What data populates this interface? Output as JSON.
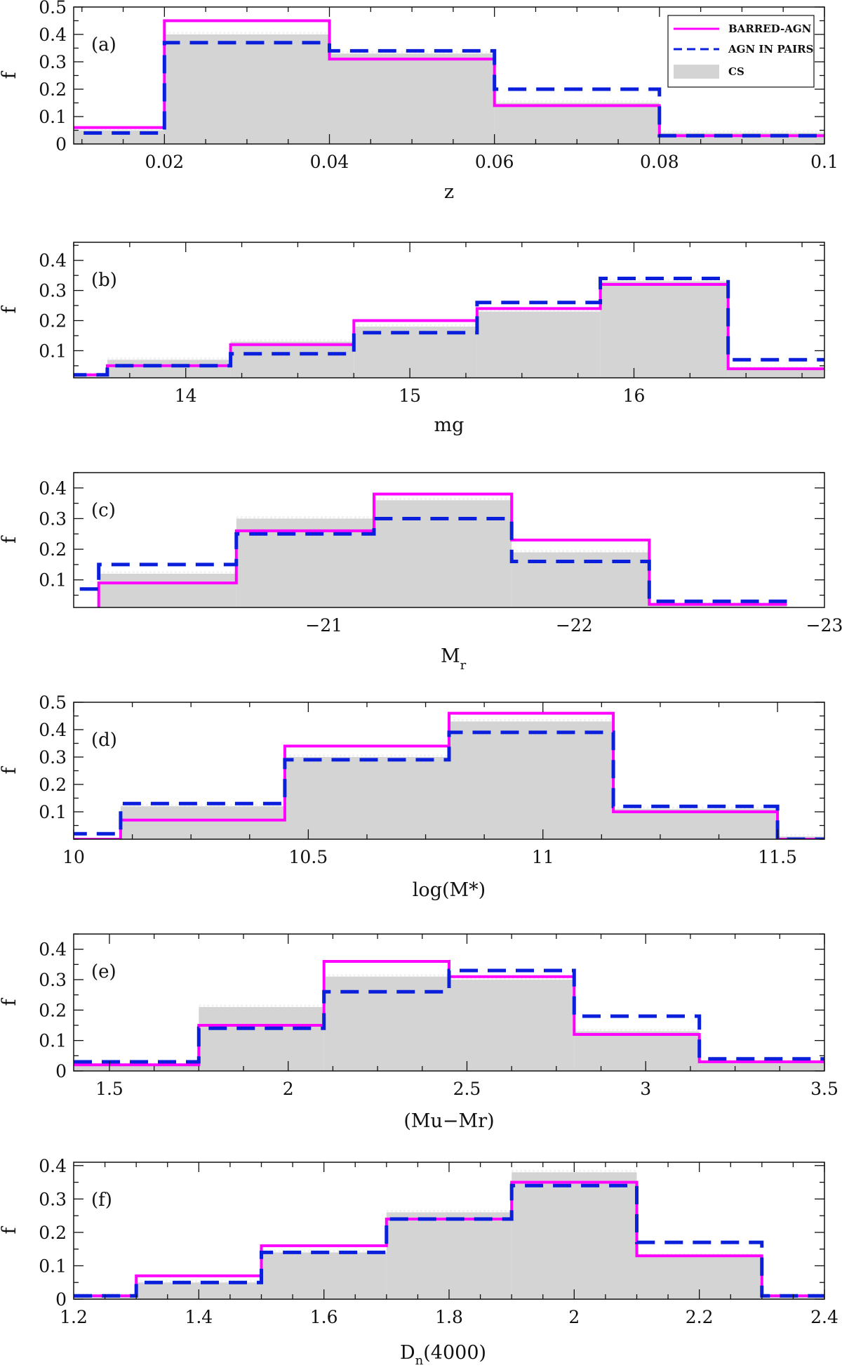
{
  "legend": {
    "barred": "BARRED-AGN",
    "pairs": "AGN IN PAIRS",
    "cs": "CS"
  },
  "colors": {
    "barred": "#ff00ff",
    "pairs": "#0a1fdc",
    "cs_fill": "#d4d4d4",
    "cs_edge": "#f2f2f2"
  },
  "chart_data": [
    {
      "type": "bar",
      "panel": "(a)",
      "xlabel": "z",
      "ylabel": "f",
      "xlim": [
        0.009,
        0.1
      ],
      "ylim": [
        0,
        0.5
      ],
      "xticks": [
        0.02,
        0.04,
        0.06,
        0.08,
        0.1
      ],
      "xtick_labels": [
        "0.02",
        "0.04",
        "0.06",
        "0.08",
        "0.1"
      ],
      "yticks": [
        0,
        0.1,
        0.2,
        0.3,
        0.4,
        0.5
      ],
      "ytick_labels": [
        "0",
        "0.1",
        "0.2",
        "0.3",
        "0.4",
        "0.5"
      ],
      "bin_edges": [
        0.0,
        0.02,
        0.04,
        0.06,
        0.08,
        0.1
      ],
      "series": [
        {
          "name": "BARRED-AGN",
          "values": [
            0.06,
            0.45,
            0.31,
            0.14,
            0.03
          ]
        },
        {
          "name": "AGN IN PAIRS",
          "values": [
            0.04,
            0.37,
            0.34,
            0.2,
            0.03
          ]
        },
        {
          "name": "CS",
          "values": [
            0.05,
            0.4,
            0.33,
            0.15,
            0.04
          ]
        }
      ],
      "legend_position": "top-right"
    },
    {
      "type": "bar",
      "panel": "(b)",
      "xlabel": "mg",
      "ylabel": "f",
      "xlim": [
        13.5,
        16.85
      ],
      "ylim": [
        0.01,
        0.46
      ],
      "xticks": [
        14,
        15,
        16
      ],
      "xtick_labels": [
        "14",
        "15",
        "16"
      ],
      "yticks": [
        0.1,
        0.2,
        0.3,
        0.4
      ],
      "ytick_labels": [
        "0.1",
        "0.2",
        "0.3",
        "0.4"
      ],
      "bin_edges": [
        13.1,
        13.65,
        14.2,
        14.75,
        15.3,
        15.85,
        16.42,
        16.85
      ],
      "series": [
        {
          "name": "BARRED-AGN",
          "values": [
            0.02,
            0.05,
            0.12,
            0.2,
            0.24,
            0.32,
            0.04
          ]
        },
        {
          "name": "AGN IN PAIRS",
          "values": [
            0.02,
            0.05,
            0.09,
            0.16,
            0.26,
            0.34,
            0.07
          ]
        },
        {
          "name": "CS",
          "values": [
            0.02,
            0.07,
            0.13,
            0.18,
            0.23,
            0.33,
            0.04
          ]
        }
      ]
    },
    {
      "type": "bar",
      "panel": "(c)",
      "xlabel": "Mr",
      "ylabel": "f",
      "xlim": [
        -20.0,
        -23.0
      ],
      "ylim": [
        0.01,
        0.45
      ],
      "xticks": [
        -21,
        -22,
        -23
      ],
      "xtick_labels": [
        "−21",
        "−22",
        "−23"
      ],
      "yticks": [
        0.1,
        0.2,
        0.3,
        0.4
      ],
      "ytick_labels": [
        "0.1",
        "0.2",
        "0.3",
        "0.4"
      ],
      "bin_edges": [
        -19.8,
        -20.1,
        -20.65,
        -21.2,
        -21.75,
        -22.3,
        -22.85
      ],
      "series": [
        {
          "name": "BARRED-AGN",
          "values": [
            0.0,
            0.09,
            0.26,
            0.38,
            0.23,
            0.02
          ]
        },
        {
          "name": "AGN IN PAIRS",
          "values": [
            0.07,
            0.15,
            0.25,
            0.3,
            0.16,
            0.03
          ]
        },
        {
          "name": "CS",
          "values": [
            0.0,
            0.12,
            0.3,
            0.36,
            0.19,
            0.02
          ]
        }
      ]
    },
    {
      "type": "bar",
      "panel": "(d)",
      "xlabel": "log(M*)",
      "ylabel": "f",
      "xlim": [
        10.0,
        11.6
      ],
      "ylim": [
        0.0,
        0.5
      ],
      "xticks": [
        10,
        10.5,
        11,
        11.5
      ],
      "xtick_labels": [
        "10",
        "10.5",
        "11",
        "11.5"
      ],
      "yticks": [
        0.1,
        0.2,
        0.3,
        0.4,
        0.5
      ],
      "ytick_labels": [
        "0.1",
        "0.2",
        "0.3",
        "0.4",
        "0.5"
      ],
      "bin_edges": [
        9.75,
        10.1,
        10.45,
        10.8,
        11.15,
        11.5,
        11.85
      ],
      "series": [
        {
          "name": "BARRED-AGN",
          "values": [
            0.0,
            0.07,
            0.34,
            0.46,
            0.1,
            0.0
          ]
        },
        {
          "name": "AGN IN PAIRS",
          "values": [
            0.02,
            0.13,
            0.29,
            0.39,
            0.12,
            0.0
          ]
        },
        {
          "name": "CS",
          "values": [
            0.0,
            0.12,
            0.3,
            0.43,
            0.11,
            0.01
          ]
        }
      ]
    },
    {
      "type": "bar",
      "panel": "(e)",
      "xlabel": "(Mu−Mr)",
      "ylabel": "f",
      "xlim": [
        1.4,
        3.5
      ],
      "ylim": [
        0.0,
        0.45
      ],
      "xticks": [
        1.5,
        2,
        2.5,
        3,
        3.5
      ],
      "xtick_labels": [
        "1.5",
        "2",
        "2.5",
        "3",
        "3.5"
      ],
      "yticks": [
        0,
        0.1,
        0.2,
        0.3,
        0.4
      ],
      "ytick_labels": [
        "0",
        "0.1",
        "0.2",
        "0.3",
        "0.4"
      ],
      "bin_edges": [
        1.4,
        1.75,
        2.1,
        2.45,
        2.8,
        3.15,
        3.5
      ],
      "series": [
        {
          "name": "BARRED-AGN",
          "values": [
            0.02,
            0.15,
            0.36,
            0.31,
            0.12,
            0.03
          ]
        },
        {
          "name": "AGN IN PAIRS",
          "values": [
            0.03,
            0.14,
            0.26,
            0.33,
            0.18,
            0.04
          ]
        },
        {
          "name": "CS",
          "values": [
            0.02,
            0.21,
            0.31,
            0.3,
            0.13,
            0.03
          ]
        }
      ]
    },
    {
      "type": "bar",
      "panel": "(f)",
      "xlabel": "Dn(4000)",
      "xlabel_main": "D",
      "xlabel_sub": "n",
      "xlabel_rest": "(4000)",
      "ylabel": "f",
      "xlim": [
        1.2,
        2.4
      ],
      "ylim": [
        0.0,
        0.41
      ],
      "xticks": [
        1.2,
        1.4,
        1.6,
        1.8,
        2,
        2.2,
        2.4
      ],
      "xtick_labels": [
        "1.2",
        "1.4",
        "1.6",
        "1.8",
        "2",
        "2.2",
        "2.4"
      ],
      "yticks": [
        0,
        0.1,
        0.2,
        0.3,
        0.4
      ],
      "ytick_labels": [
        "0",
        "0.1",
        "0.2",
        "0.3",
        "0.4"
      ],
      "bin_edges": [
        1.2,
        1.3,
        1.5,
        1.7,
        1.9,
        2.1,
        2.3,
        2.4
      ],
      "series": [
        {
          "name": "BARRED-AGN",
          "values": [
            0.01,
            0.07,
            0.16,
            0.24,
            0.35,
            0.13,
            0.01
          ]
        },
        {
          "name": "AGN IN PAIRS",
          "values": [
            0.01,
            0.05,
            0.14,
            0.24,
            0.34,
            0.17,
            0.01
          ]
        },
        {
          "name": "CS",
          "values": [
            0.01,
            0.05,
            0.14,
            0.26,
            0.38,
            0.13,
            0.01
          ]
        }
      ]
    }
  ]
}
